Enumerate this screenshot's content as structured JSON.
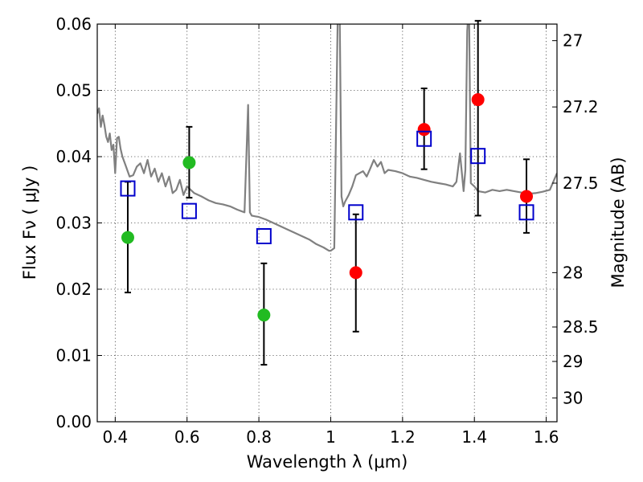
{
  "chart_data": {
    "type": "scatter",
    "xlabel": "Wavelength  λ (μm)",
    "ylabel": "Flux  Fν  ( μJy )",
    "y2label": "Magnitude (AB)",
    "xlim": [
      0.35,
      1.63
    ],
    "ylim": [
      0.0,
      0.06
    ],
    "xticks": [
      0.4,
      0.6,
      0.8,
      1.0,
      1.2,
      1.4,
      1.6
    ],
    "xtick_labels": [
      "0.4",
      "0.6",
      "0.8",
      "1",
      "1.2",
      "1.4",
      "1.6"
    ],
    "yticks": [
      0.0,
      0.01,
      0.02,
      0.03,
      0.04,
      0.05,
      0.06
    ],
    "ytick_labels": [
      "0.00",
      "0.01",
      "0.02",
      "0.03",
      "0.04",
      "0.05",
      "0.06"
    ],
    "y2ticks": [
      {
        "label": "27",
        "flux": 0.0575
      },
      {
        "label": "27.2",
        "flux": 0.0475
      },
      {
        "label": "27.5",
        "flux": 0.036
      },
      {
        "label": "28",
        "flux": 0.0225
      },
      {
        "label": "28.5",
        "flux": 0.0143
      },
      {
        "label": "29",
        "flux": 0.0091
      },
      {
        "label": "30",
        "flux": 0.0036
      }
    ],
    "grid": true,
    "series": [
      {
        "marker": "filled-circle",
        "color": "#22bb22",
        "points": [
          {
            "x": 0.435,
            "y": 0.0278,
            "ylo": 0.0195,
            "yhi": 0.0362
          },
          {
            "x": 0.606,
            "y": 0.0391,
            "ylo": 0.0338,
            "yhi": 0.0445
          },
          {
            "x": 0.814,
            "y": 0.0161,
            "ylo": 0.0086,
            "yhi": 0.0239
          }
        ]
      },
      {
        "marker": "filled-circle",
        "color": "#ff0000",
        "points": [
          {
            "x": 1.07,
            "y": 0.0225,
            "ylo": 0.0136,
            "yhi": 0.0313
          },
          {
            "x": 1.26,
            "y": 0.0441,
            "ylo": 0.0381,
            "yhi": 0.0503
          },
          {
            "x": 1.41,
            "y": 0.0486,
            "ylo": 0.0311,
            "yhi": 0.0605
          },
          {
            "x": 1.545,
            "y": 0.034,
            "ylo": 0.0285,
            "yhi": 0.0396
          }
        ]
      },
      {
        "marker": "open-square",
        "color": "#0000cc",
        "points": [
          {
            "x": 0.435,
            "y": 0.0352
          },
          {
            "x": 0.606,
            "y": 0.0318
          },
          {
            "x": 0.814,
            "y": 0.028
          },
          {
            "x": 1.07,
            "y": 0.0316
          },
          {
            "x": 1.26,
            "y": 0.0427
          },
          {
            "x": 1.41,
            "y": 0.0401
          },
          {
            "x": 1.545,
            "y": 0.0316
          }
        ]
      },
      {
        "type": "line",
        "color": "#808080",
        "x": [
          0.35,
          0.355,
          0.36,
          0.365,
          0.37,
          0.375,
          0.38,
          0.385,
          0.39,
          0.395,
          0.4,
          0.405,
          0.41,
          0.415,
          0.42,
          0.43,
          0.44,
          0.45,
          0.46,
          0.47,
          0.48,
          0.49,
          0.5,
          0.51,
          0.52,
          0.53,
          0.54,
          0.55,
          0.56,
          0.57,
          0.58,
          0.59,
          0.6,
          0.62,
          0.64,
          0.66,
          0.68,
          0.7,
          0.72,
          0.74,
          0.76,
          0.77,
          0.775,
          0.78,
          0.79,
          0.8,
          0.82,
          0.84,
          0.86,
          0.88,
          0.9,
          0.92,
          0.94,
          0.96,
          0.98,
          0.995,
          1.0,
          1.01,
          1.02,
          1.025,
          1.03,
          1.035,
          1.04,
          1.05,
          1.06,
          1.07,
          1.08,
          1.09,
          1.1,
          1.11,
          1.12,
          1.13,
          1.14,
          1.15,
          1.16,
          1.18,
          1.2,
          1.22,
          1.24,
          1.26,
          1.28,
          1.3,
          1.32,
          1.34,
          1.35,
          1.36,
          1.37,
          1.375,
          1.38,
          1.385,
          1.39,
          1.4,
          1.41,
          1.43,
          1.45,
          1.47,
          1.49,
          1.51,
          1.53,
          1.55,
          1.57,
          1.59,
          1.61,
          1.63
        ],
        "y": [
          0.0465,
          0.0473,
          0.0445,
          0.0462,
          0.0448,
          0.043,
          0.0422,
          0.0435,
          0.041,
          0.0418,
          0.0375,
          0.0428,
          0.043,
          0.0412,
          0.04,
          0.0385,
          0.037,
          0.0372,
          0.0385,
          0.039,
          0.0375,
          0.0395,
          0.037,
          0.0382,
          0.0362,
          0.0375,
          0.0355,
          0.037,
          0.0345,
          0.035,
          0.0365,
          0.0342,
          0.0355,
          0.0345,
          0.034,
          0.0334,
          0.033,
          0.0328,
          0.0325,
          0.032,
          0.0316,
          0.0478,
          0.0316,
          0.0311,
          0.031,
          0.0309,
          0.0305,
          0.03,
          0.0295,
          0.029,
          0.0285,
          0.028,
          0.0275,
          0.0268,
          0.0263,
          0.0258,
          0.0258,
          0.0262,
          0.063,
          0.062,
          0.034,
          0.0325,
          0.0332,
          0.0342,
          0.0355,
          0.0372,
          0.0375,
          0.0378,
          0.037,
          0.0382,
          0.0395,
          0.0385,
          0.0392,
          0.0375,
          0.038,
          0.0378,
          0.0375,
          0.037,
          0.0368,
          0.0365,
          0.0362,
          0.036,
          0.0358,
          0.0355,
          0.0362,
          0.0405,
          0.0348,
          0.038,
          0.059,
          0.063,
          0.036,
          0.0355,
          0.0348,
          0.0346,
          0.035,
          0.0348,
          0.035,
          0.0348,
          0.0346,
          0.0344,
          0.0345,
          0.0347,
          0.035,
          0.0375
        ]
      }
    ]
  }
}
